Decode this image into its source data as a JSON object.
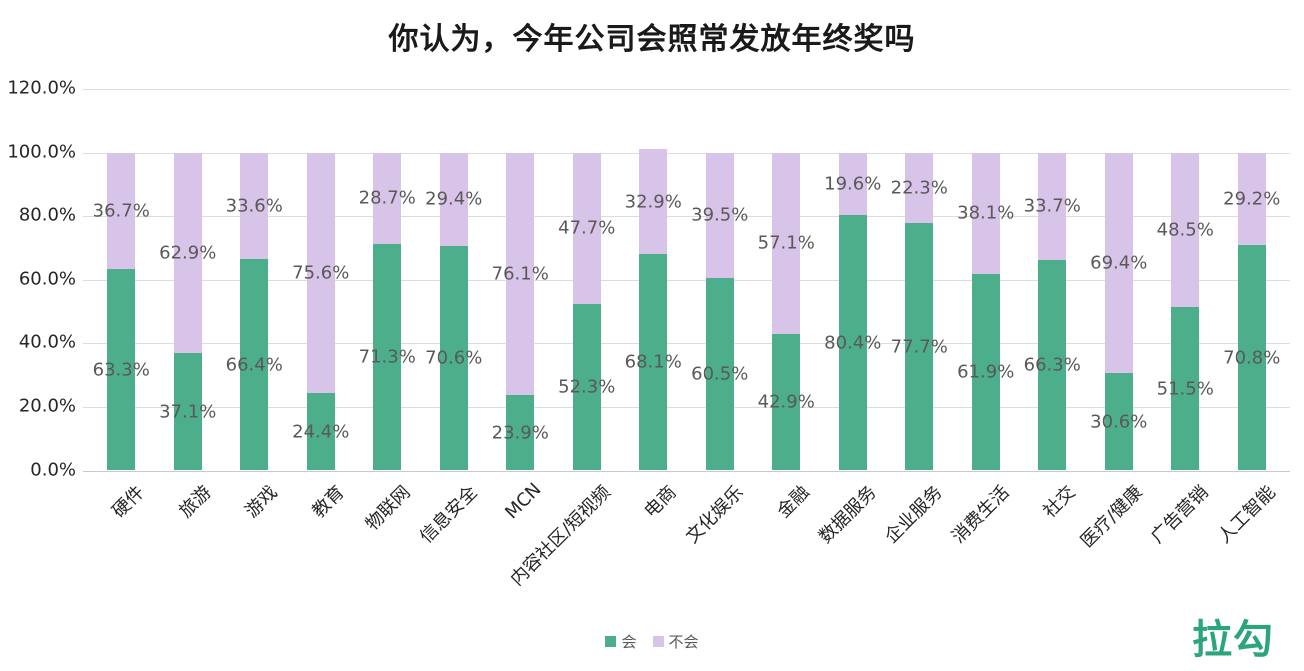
{
  "chart_data": {
    "type": "bar",
    "stacked": true,
    "title": "你认为，今年公司会照常发放年终奖吗",
    "categories": [
      "硬件",
      "旅游",
      "游戏",
      "教育",
      "物联网",
      "信息安全",
      "MCN",
      "内容社区/短视频",
      "电商",
      "文化娱乐",
      "金融",
      "数据服务",
      "企业服务",
      "消费生活",
      "社交",
      "医疗/健康",
      "广告营销",
      "人工智能"
    ],
    "series": [
      {
        "name": "会",
        "color": "#4dae8c",
        "values": [
          63.3,
          37.1,
          66.4,
          24.4,
          71.3,
          70.6,
          23.9,
          52.3,
          68.1,
          60.5,
          42.9,
          80.4,
          77.7,
          61.9,
          66.3,
          30.6,
          51.5,
          70.8
        ]
      },
      {
        "name": "不会",
        "color": "#d9c4e9",
        "values": [
          36.7,
          62.9,
          33.6,
          75.6,
          28.7,
          29.4,
          76.1,
          47.7,
          32.9,
          39.5,
          57.1,
          19.6,
          22.3,
          38.1,
          33.7,
          69.4,
          48.5,
          29.2
        ]
      }
    ],
    "xlabel": "",
    "ylabel": "",
    "ylim": [
      0,
      120
    ],
    "y_ticks": [
      "0.0%",
      "20.0%",
      "40.0%",
      "60.0%",
      "80.0%",
      "100.0%",
      "120.0%"
    ],
    "grid": true,
    "legend_position": "bottom",
    "value_label_format": "0.0%",
    "value_label_color": "#595959",
    "x_tick_rotation": 45
  },
  "logo_text": "拉勾"
}
